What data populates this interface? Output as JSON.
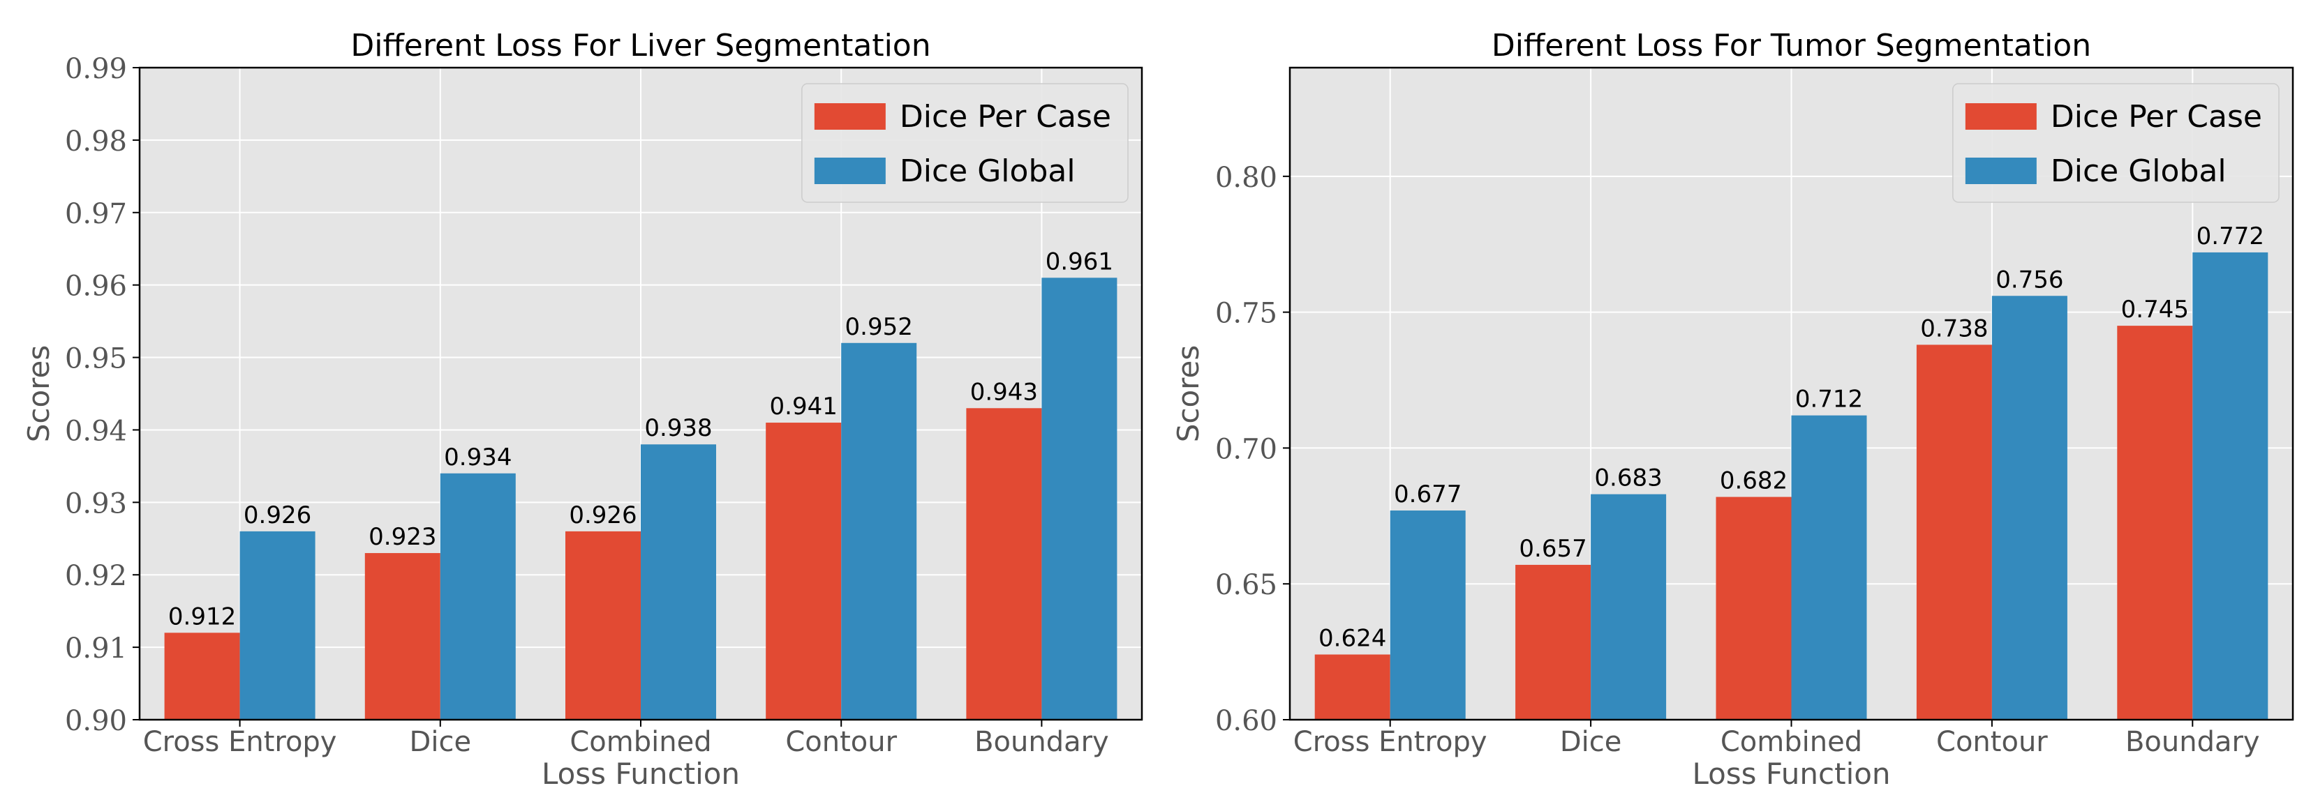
{
  "colors": {
    "per_case": "#E24A33",
    "global": "#348ABD",
    "plot_bg": "#E5E5E5",
    "grid": "#FFFFFF",
    "frame": "#000000",
    "text": "#000000",
    "tick_text": "#555555"
  },
  "chart_data": [
    {
      "type": "bar",
      "title": "Different Loss For Liver Segmentation",
      "xlabel": "Loss Function",
      "ylabel": "Scores",
      "categories": [
        "Cross Entropy",
        "Dice",
        "Combined",
        "Contour",
        "Boundary"
      ],
      "series": [
        {
          "name": "Dice Per Case",
          "values": [
            0.912,
            0.923,
            0.926,
            0.941,
            0.943
          ]
        },
        {
          "name": "Dice Global",
          "values": [
            0.926,
            0.934,
            0.938,
            0.952,
            0.961
          ]
        }
      ],
      "value_labels": [
        [
          "0.912",
          "0.923",
          "0.926",
          "0.941",
          "0.943"
        ],
        [
          "0.926",
          "0.934",
          "0.938",
          "0.952",
          "0.961"
        ]
      ],
      "ylim": [
        0.9,
        0.99
      ],
      "yticks": [
        0.9,
        0.91,
        0.92,
        0.93,
        0.94,
        0.95,
        0.96,
        0.97,
        0.98,
        0.99
      ],
      "ytick_labels": [
        "0.90",
        "0.91",
        "0.92",
        "0.93",
        "0.94",
        "0.95",
        "0.96",
        "0.97",
        "0.98",
        "0.99"
      ],
      "grid": true,
      "legend": "top-right"
    },
    {
      "type": "bar",
      "title": "Different Loss For Tumor Segmentation",
      "xlabel": "Loss Function",
      "ylabel": "Scores",
      "categories": [
        "Cross Entropy",
        "Dice",
        "Combined",
        "Contour",
        "Boundary"
      ],
      "series": [
        {
          "name": "Dice Per Case",
          "values": [
            0.624,
            0.657,
            0.682,
            0.738,
            0.745
          ]
        },
        {
          "name": "Dice Global",
          "values": [
            0.677,
            0.683,
            0.712,
            0.756,
            0.772
          ]
        }
      ],
      "value_labels": [
        [
          "0.624",
          "0.657",
          "0.682",
          "0.738",
          "0.745"
        ],
        [
          "0.677",
          "0.683",
          "0.712",
          "0.756",
          "0.772"
        ]
      ],
      "ylim": [
        0.6,
        0.84
      ],
      "yticks": [
        0.6,
        0.65,
        0.7,
        0.75,
        0.8
      ],
      "ytick_labels": [
        "0.60",
        "0.65",
        "0.70",
        "0.75",
        "0.80"
      ],
      "grid": true,
      "legend": "top-right"
    }
  ]
}
